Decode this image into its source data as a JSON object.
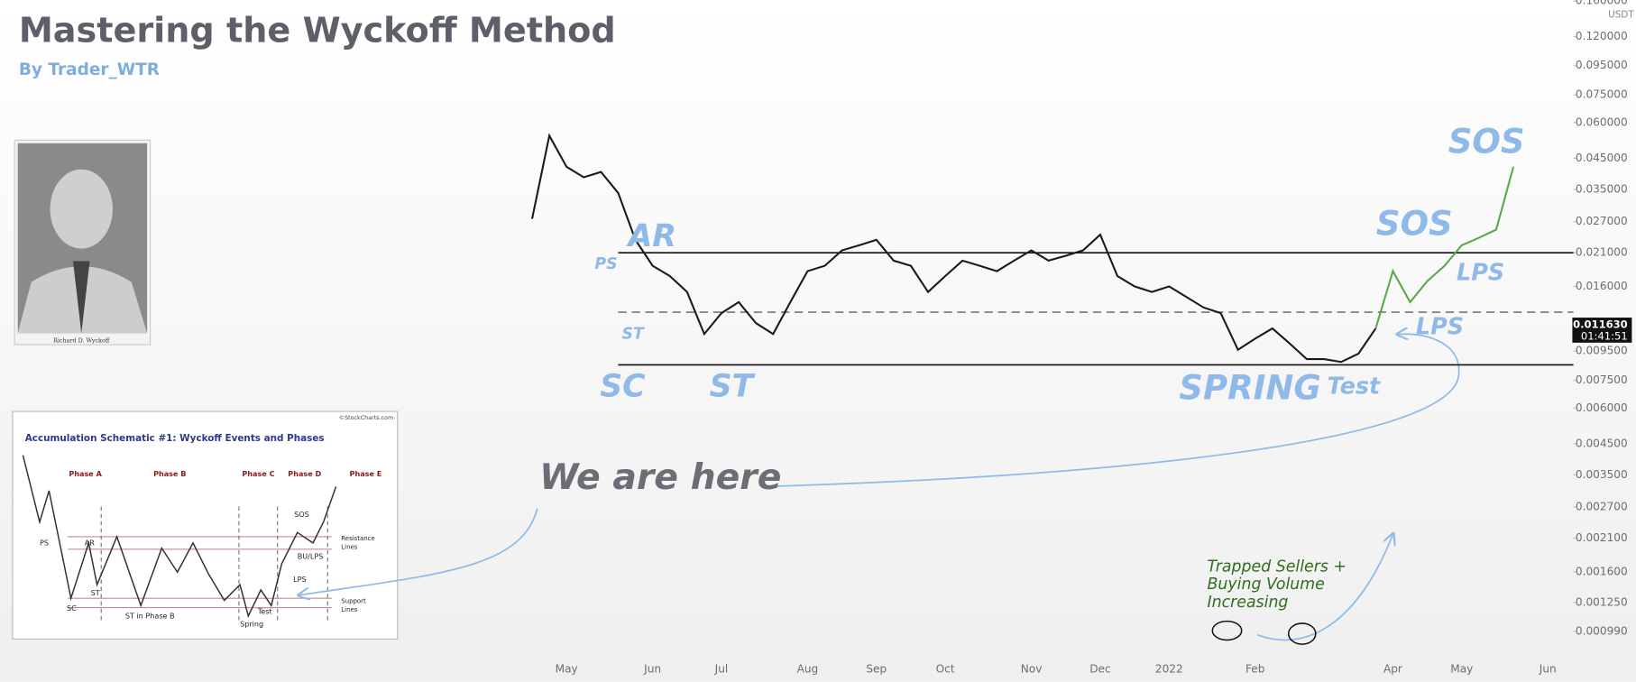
{
  "header": {
    "title": "Mastering the Wyckoff Method",
    "subtitle": "By Trader_WTR"
  },
  "photo": {
    "caption": "Richard D. Wyckoff"
  },
  "chart_data": {
    "type": "line",
    "log_scale": true,
    "grid": false,
    "currency": "USDT",
    "categories": [
      null,
      null,
      "May",
      null,
      null,
      null,
      null,
      "Jun",
      null,
      null,
      null,
      "Jul",
      null,
      null,
      null,
      null,
      "Aug",
      null,
      null,
      null,
      "Sep",
      null,
      null,
      null,
      "Oct",
      null,
      null,
      null,
      null,
      "Nov",
      null,
      null,
      null,
      "Dec",
      null,
      null,
      null,
      "2022",
      null,
      null,
      null,
      null,
      "Feb",
      null,
      null,
      null,
      null,
      null,
      null,
      null,
      "Apr",
      null,
      null,
      null,
      "May",
      null,
      null,
      null,
      null,
      "Jun"
    ],
    "series": [
      {
        "color": "#1a1a1a",
        "values": [
          0.0276,
          0.054,
          0.042,
          0.0386,
          0.0403,
          0.034,
          0.0233,
          0.0189,
          0.0174,
          0.0153,
          0.0109,
          0.0129,
          0.0141,
          0.0119,
          0.0109,
          0.0141,
          0.0181,
          0.0189,
          0.0214,
          0.0223,
          0.0233,
          0.0197,
          0.0189,
          0.0153,
          0.0174,
          0.0197,
          0.0189,
          0.0181,
          0.0197,
          0.0214,
          0.0197,
          0.0205,
          0.0214,
          0.0243,
          0.0174,
          0.016,
          0.0153,
          0.016,
          0.0147,
          0.0135,
          0.0129,
          0.0096,
          0.0105,
          0.0114,
          0.0101,
          0.0089,
          0.0089,
          0.0087,
          0.0093,
          0.0114,
          null,
          null,
          null,
          null,
          null,
          null,
          null,
          null,
          null,
          null
        ]
      },
      {
        "color": "#5aa84a",
        "values": [
          null,
          null,
          null,
          null,
          null,
          null,
          null,
          null,
          null,
          null,
          null,
          null,
          null,
          null,
          null,
          null,
          null,
          null,
          null,
          null,
          null,
          null,
          null,
          null,
          null,
          null,
          null,
          null,
          null,
          null,
          null,
          null,
          null,
          null,
          null,
          null,
          null,
          null,
          null,
          null,
          null,
          null,
          null,
          null,
          null,
          null,
          null,
          null,
          null,
          0.0114,
          0.0181,
          0.0141,
          0.0167,
          0.0189,
          0.0223,
          0.0237,
          0.0253,
          0.042,
          null,
          null
        ]
      }
    ],
    "levels": [
      {
        "value": 0.021,
        "style": "solid"
      },
      {
        "value": 0.013,
        "style": "dashed"
      },
      {
        "value": 0.0085,
        "style": "solid"
      }
    ],
    "ylim": [
      0.0008,
      0.161
    ],
    "yticks": [
      {
        "value": 0.16,
        "label": "0.160000"
      },
      {
        "value": 0.12,
        "label": "0.120000"
      },
      {
        "value": 0.095,
        "label": "0.095000"
      },
      {
        "value": 0.075,
        "label": "0.075000"
      },
      {
        "value": 0.06,
        "label": "0.060000"
      },
      {
        "value": 0.045,
        "label": "0.045000"
      },
      {
        "value": 0.035,
        "label": "0.035000"
      },
      {
        "value": 0.027,
        "label": "0.027000"
      },
      {
        "value": 0.021,
        "label": "0.021000"
      },
      {
        "value": 0.016,
        "label": "0.016000"
      },
      {
        "value": 0.0095,
        "label": "0.009500"
      },
      {
        "value": 0.0075,
        "label": "0.007500"
      },
      {
        "value": 0.006,
        "label": "0.006000"
      },
      {
        "value": 0.0045,
        "label": "0.004500"
      },
      {
        "value": 0.0035,
        "label": "0.003500"
      },
      {
        "value": 0.0027,
        "label": "0.002700"
      },
      {
        "value": 0.0021,
        "label": "0.002100"
      },
      {
        "value": 0.0016,
        "label": "0.001600"
      },
      {
        "value": 0.00125,
        "label": "0.001250"
      },
      {
        "value": 0.00099,
        "label": "0.000990"
      }
    ],
    "current_price": {
      "value": 0.01163,
      "label": "0.011630",
      "countdown": "01:41:51"
    },
    "annotations": [
      "PS",
      "AR",
      "ST",
      "SC",
      "ST",
      "SPRING",
      "Test",
      "LPS",
      "LPS",
      "SOS",
      "SOS",
      "We are here"
    ],
    "note": [
      "Trapped Sellers +",
      "Buying Volume",
      "Increasing"
    ]
  },
  "inset": {
    "title": "Accumulation Schematic #1: Wyckoff Events and Phases",
    "source": "©StockCharts.com",
    "phases": [
      "Phase A",
      "Phase B",
      "Phase C",
      "Phase D",
      "Phase E"
    ],
    "events": [
      "PS",
      "AR",
      "SC",
      "ST",
      "ST in Phase B",
      "Spring",
      "Test",
      "SOS",
      "BU/LPS",
      "LPS"
    ],
    "lines": [
      [
        "Resistance",
        "Lines"
      ],
      [
        "Support",
        "Lines"
      ]
    ]
  }
}
